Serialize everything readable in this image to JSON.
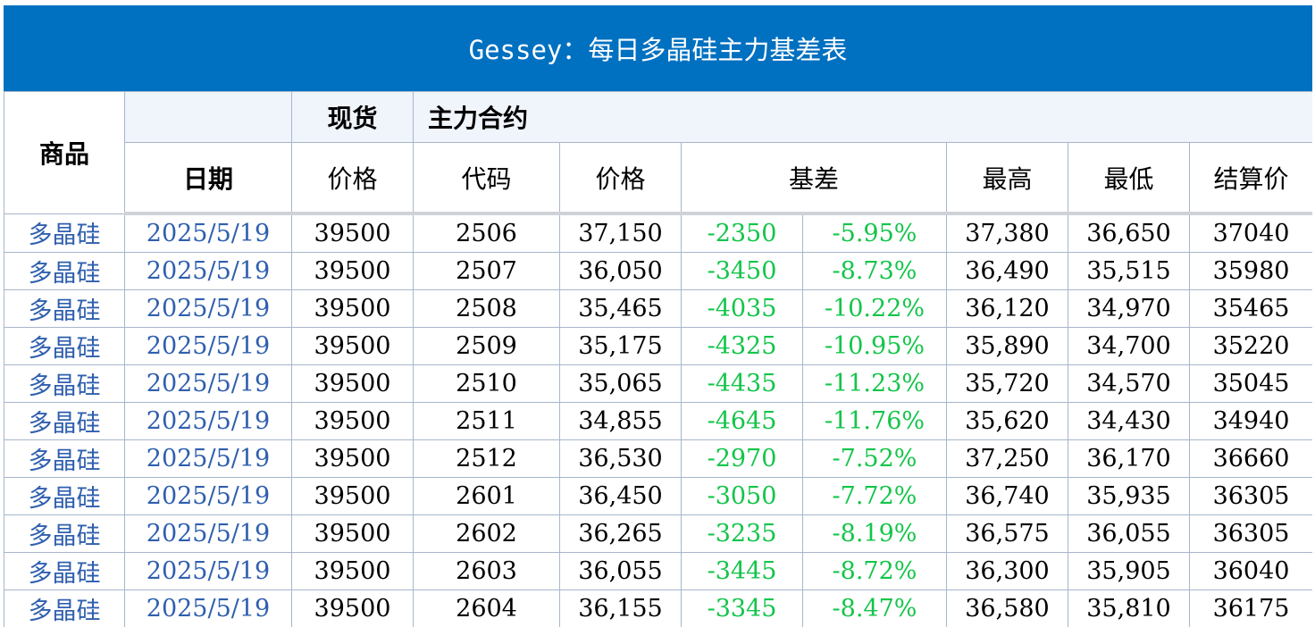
{
  "title": "Gessey：每日多晶硅主力基差表",
  "headers": {
    "product": "商品",
    "spot": "现货",
    "main_contract": "主力合约",
    "date": "日期",
    "spot_price": "价格",
    "code": "代码",
    "contract_price": "价格",
    "basis": "基差",
    "high": "最高",
    "low": "最低",
    "settle": "结算价"
  },
  "rows": [
    {
      "product": "多晶硅",
      "date": "2025/5/19",
      "spot": "39500",
      "code": "2506",
      "price": "37,150",
      "basis": "-2350",
      "basis_pct": "-5.95%",
      "high": "37,380",
      "low": "36,650",
      "settle": "37040"
    },
    {
      "product": "多晶硅",
      "date": "2025/5/19",
      "spot": "39500",
      "code": "2507",
      "price": "36,050",
      "basis": "-3450",
      "basis_pct": "-8.73%",
      "high": "36,490",
      "low": "35,515",
      "settle": "35980"
    },
    {
      "product": "多晶硅",
      "date": "2025/5/19",
      "spot": "39500",
      "code": "2508",
      "price": "35,465",
      "basis": "-4035",
      "basis_pct": "-10.22%",
      "high": "36,120",
      "low": "34,970",
      "settle": "35465"
    },
    {
      "product": "多晶硅",
      "date": "2025/5/19",
      "spot": "39500",
      "code": "2509",
      "price": "35,175",
      "basis": "-4325",
      "basis_pct": "-10.95%",
      "high": "35,890",
      "low": "34,700",
      "settle": "35220"
    },
    {
      "product": "多晶硅",
      "date": "2025/5/19",
      "spot": "39500",
      "code": "2510",
      "price": "35,065",
      "basis": "-4435",
      "basis_pct": "-11.23%",
      "high": "35,720",
      "low": "34,570",
      "settle": "35045"
    },
    {
      "product": "多晶硅",
      "date": "2025/5/19",
      "spot": "39500",
      "code": "2511",
      "price": "34,855",
      "basis": "-4645",
      "basis_pct": "-11.76%",
      "high": "35,620",
      "low": "34,430",
      "settle": "34940"
    },
    {
      "product": "多晶硅",
      "date": "2025/5/19",
      "spot": "39500",
      "code": "2512",
      "price": "36,530",
      "basis": "-2970",
      "basis_pct": "-7.52%",
      "high": "37,250",
      "low": "36,170",
      "settle": "36660"
    },
    {
      "product": "多晶硅",
      "date": "2025/5/19",
      "spot": "39500",
      "code": "2601",
      "price": "36,450",
      "basis": "-3050",
      "basis_pct": "-7.72%",
      "high": "36,740",
      "low": "35,935",
      "settle": "36305"
    },
    {
      "product": "多晶硅",
      "date": "2025/5/19",
      "spot": "39500",
      "code": "2602",
      "price": "36,265",
      "basis": "-3235",
      "basis_pct": "-8.19%",
      "high": "36,575",
      "low": "36,055",
      "settle": "36305"
    },
    {
      "product": "多晶硅",
      "date": "2025/5/19",
      "spot": "39500",
      "code": "2603",
      "price": "36,055",
      "basis": "-3445",
      "basis_pct": "-8.72%",
      "high": "36,300",
      "low": "35,905",
      "settle": "36040"
    },
    {
      "product": "多晶硅",
      "date": "2025/5/19",
      "spot": "39500",
      "code": "2604",
      "price": "36,155",
      "basis": "-3345",
      "basis_pct": "-8.47%",
      "high": "36,580",
      "low": "35,810",
      "settle": "36175"
    }
  ],
  "colors": {
    "title_bg": "#0070c0",
    "header_shade": "#f0f4fb",
    "product_date_text": "#2f5fae",
    "basis_text": "#13c54a"
  }
}
